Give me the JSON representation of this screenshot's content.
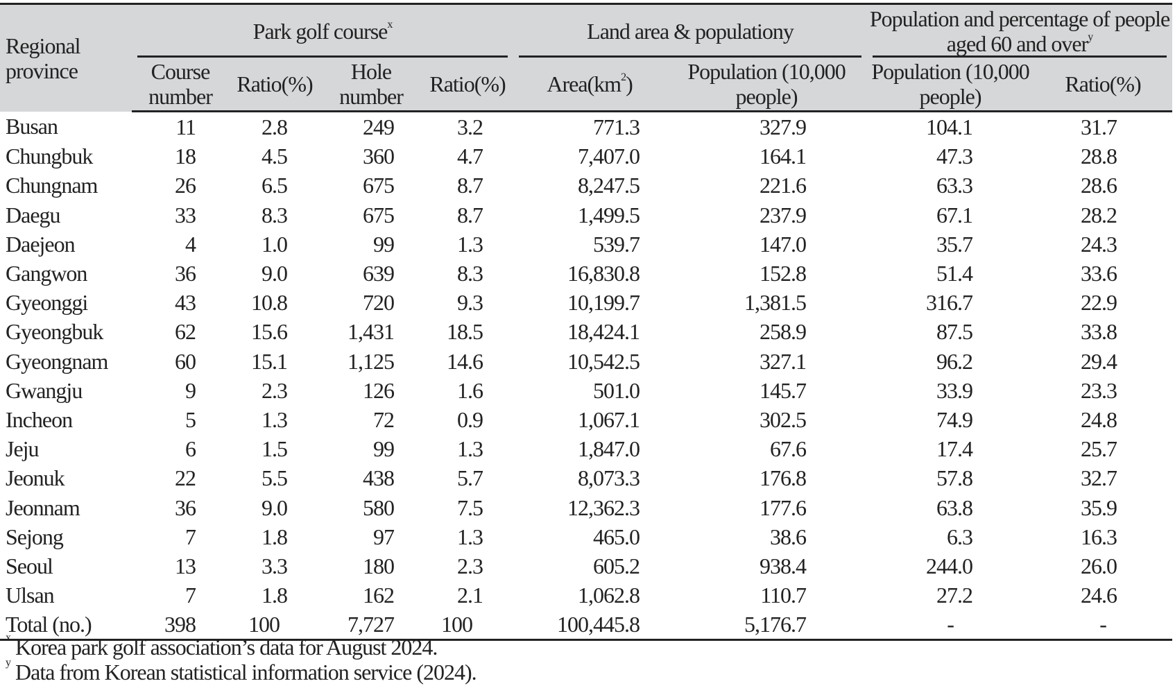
{
  "header": {
    "region": "Regional province",
    "groups": {
      "park_golf": "Park golf course",
      "park_golf_sup": "x",
      "land": "Land area & populationy",
      "aged": "Population and percentage of people aged 60 and over",
      "aged_sup": "y"
    },
    "sub": {
      "course_number": "Course number",
      "ratio1": "Ratio(%)",
      "hole_number": "Hole number",
      "ratio2": "Ratio(%)",
      "area": "Area(km",
      "area_sup": "2",
      "area_close": ")",
      "population": "Population (10,000 people)",
      "population_aged": "Population (10,000 people)",
      "ratio3": "Ratio(%)"
    }
  },
  "rows": [
    {
      "region": "Busan",
      "course": "11",
      "ratio1": "2.8",
      "hole": "249",
      "ratio2": "3.2",
      "area": "771.3",
      "population": "327.9",
      "aged_pop": "104.1",
      "aged_ratio": "31.7"
    },
    {
      "region": "Chungbuk",
      "course": "18",
      "ratio1": "4.5",
      "hole": "360",
      "ratio2": "4.7",
      "area": "7,407.0",
      "population": "164.1",
      "aged_pop": "47.3",
      "aged_ratio": "28.8"
    },
    {
      "region": "Chungnam",
      "course": "26",
      "ratio1": "6.5",
      "hole": "675",
      "ratio2": "8.7",
      "area": "8,247.5",
      "population": "221.6",
      "aged_pop": "63.3",
      "aged_ratio": "28.6"
    },
    {
      "region": "Daegu",
      "course": "33",
      "ratio1": "8.3",
      "hole": "675",
      "ratio2": "8.7",
      "area": "1,499.5",
      "population": "237.9",
      "aged_pop": "67.1",
      "aged_ratio": "28.2"
    },
    {
      "region": "Daejeon",
      "course": "4",
      "ratio1": "1.0",
      "hole": "99",
      "ratio2": "1.3",
      "area": "539.7",
      "population": "147.0",
      "aged_pop": "35.7",
      "aged_ratio": "24.3"
    },
    {
      "region": "Gangwon",
      "course": "36",
      "ratio1": "9.0",
      "hole": "639",
      "ratio2": "8.3",
      "area": "16,830.8",
      "population": "152.8",
      "aged_pop": "51.4",
      "aged_ratio": "33.6"
    },
    {
      "region": "Gyeonggi",
      "course": "43",
      "ratio1": "10.8",
      "hole": "720",
      "ratio2": "9.3",
      "area": "10,199.7",
      "population": "1,381.5",
      "aged_pop": "316.7",
      "aged_ratio": "22.9"
    },
    {
      "region": "Gyeongbuk",
      "course": "62",
      "ratio1": "15.6",
      "hole": "1,431",
      "ratio2": "18.5",
      "area": "18,424.1",
      "population": "258.9",
      "aged_pop": "87.5",
      "aged_ratio": "33.8"
    },
    {
      "region": "Gyeongnam",
      "course": "60",
      "ratio1": "15.1",
      "hole": "1,125",
      "ratio2": "14.6",
      "area": "10,542.5",
      "population": "327.1",
      "aged_pop": "96.2",
      "aged_ratio": "29.4"
    },
    {
      "region": "Gwangju",
      "course": "9",
      "ratio1": "2.3",
      "hole": "126",
      "ratio2": "1.6",
      "area": "501.0",
      "population": "145.7",
      "aged_pop": "33.9",
      "aged_ratio": "23.3"
    },
    {
      "region": "Incheon",
      "course": "5",
      "ratio1": "1.3",
      "hole": "72",
      "ratio2": "0.9",
      "area": "1,067.1",
      "population": "302.5",
      "aged_pop": "74.9",
      "aged_ratio": "24.8"
    },
    {
      "region": "Jeju",
      "course": "6",
      "ratio1": "1.5",
      "hole": "99",
      "ratio2": "1.3",
      "area": "1,847.0",
      "population": "67.6",
      "aged_pop": "17.4",
      "aged_ratio": "25.7"
    },
    {
      "region": "Jeonuk",
      "course": "22",
      "ratio1": "5.5",
      "hole": "438",
      "ratio2": "5.7",
      "area": "8,073.3",
      "population": "176.8",
      "aged_pop": "57.8",
      "aged_ratio": "32.7"
    },
    {
      "region": "Jeonnam",
      "course": "36",
      "ratio1": "9.0",
      "hole": "580",
      "ratio2": "7.5",
      "area": "12,362.3",
      "population": "177.6",
      "aged_pop": "63.8",
      "aged_ratio": "35.9"
    },
    {
      "region": "Sejong",
      "course": "7",
      "ratio1": "1.8",
      "hole": "97",
      "ratio2": "1.3",
      "area": "465.0",
      "population": "38.6",
      "aged_pop": "6.3",
      "aged_ratio": "16.3"
    },
    {
      "region": "Seoul",
      "course": "13",
      "ratio1": "3.3",
      "hole": "180",
      "ratio2": "2.3",
      "area": "605.2",
      "population": "938.4",
      "aged_pop": "244.0",
      "aged_ratio": "26.0"
    },
    {
      "region": "Ulsan",
      "course": "7",
      "ratio1": "1.8",
      "hole": "162",
      "ratio2": "2.1",
      "area": "1,062.8",
      "population": "110.7",
      "aged_pop": "27.2",
      "aged_ratio": "24.6"
    }
  ],
  "total": {
    "region": "Total (no.)",
    "course": "398",
    "ratio1": "100",
    "hole": "7,727",
    "ratio2": "100",
    "area": "100,445.8",
    "population": "5,176.7",
    "aged_pop": "-",
    "aged_ratio": "-"
  },
  "notes": [
    {
      "mark": "x",
      "text": "Korea park golf association’s data for August 2024."
    },
    {
      "mark": "y",
      "text": "Data from Korean statistical information service (2024)."
    }
  ]
}
